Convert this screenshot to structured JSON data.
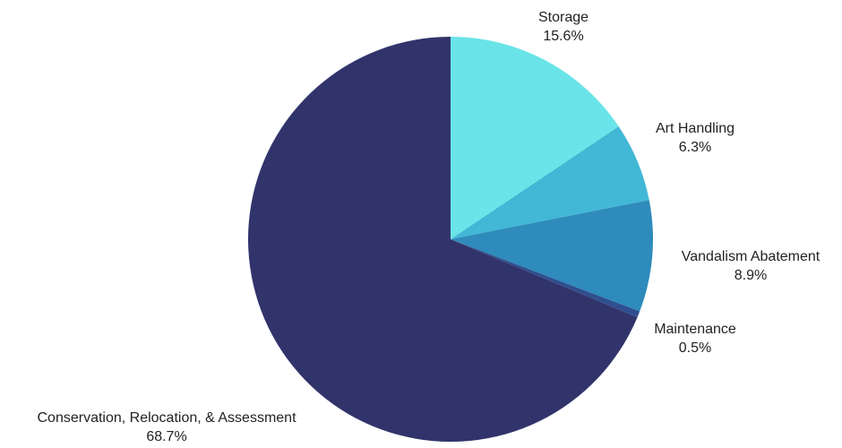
{
  "chart_data": {
    "type": "pie",
    "title": "",
    "start_angle_deg": 0,
    "direction": "clockwise",
    "slices": [
      {
        "label": "Storage",
        "percent_label": "15.6%",
        "value": 15.6,
        "color": "#6ae4e8"
      },
      {
        "label": "Art Handling",
        "percent_label": "6.3%",
        "value": 6.3,
        "color": "#42b7d6"
      },
      {
        "label": "Vandalism Abatement",
        "percent_label": "8.9%",
        "value": 8.9,
        "color": "#2e8bbb"
      },
      {
        "label": "Maintenance",
        "percent_label": "0.5%",
        "value": 0.5,
        "color": "#2f4f8f"
      },
      {
        "label": "Conservation, Relocation, & Assessment",
        "percent_label": "68.7%",
        "value": 68.7,
        "color": "#31346b"
      }
    ]
  }
}
